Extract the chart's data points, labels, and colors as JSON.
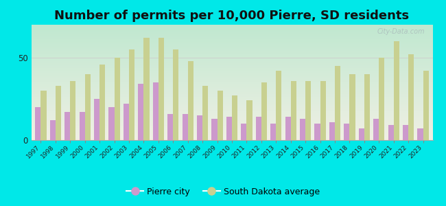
{
  "title": "Number of permits per 10,000 Pierre, SD residents",
  "years": [
    1997,
    1998,
    1999,
    2000,
    2001,
    2002,
    2003,
    2004,
    2005,
    2006,
    2007,
    2008,
    2009,
    2010,
    2011,
    2012,
    2013,
    2014,
    2015,
    2016,
    2017,
    2018,
    2019,
    2020,
    2021,
    2022,
    2023
  ],
  "pierre": [
    20,
    12,
    17,
    17,
    25,
    20,
    22,
    34,
    35,
    16,
    16,
    15,
    13,
    14,
    10,
    14,
    10,
    14,
    13,
    10,
    11,
    10,
    7,
    13,
    9,
    9,
    7
  ],
  "sd_avg": [
    30,
    33,
    36,
    40,
    46,
    50,
    55,
    62,
    62,
    55,
    48,
    33,
    30,
    27,
    24,
    35,
    42,
    36,
    36,
    36,
    45,
    40,
    40,
    50,
    60,
    52,
    42
  ],
  "pierre_color": "#cc99cc",
  "sd_avg_color": "#c8d090",
  "background_outer": "#00e8e8",
  "grad_top": "#c0e8d0",
  "grad_bottom": "#f0f0e4",
  "ylim": [
    0,
    70
  ],
  "ytick_vals": [
    0,
    50
  ],
  "title_fontsize": 13,
  "watermark": "City-Data.com",
  "bar_width": 0.38,
  "xlabel_fontsize": 6.5,
  "ylabel_fontsize": 8.5,
  "legend_fontsize": 9
}
